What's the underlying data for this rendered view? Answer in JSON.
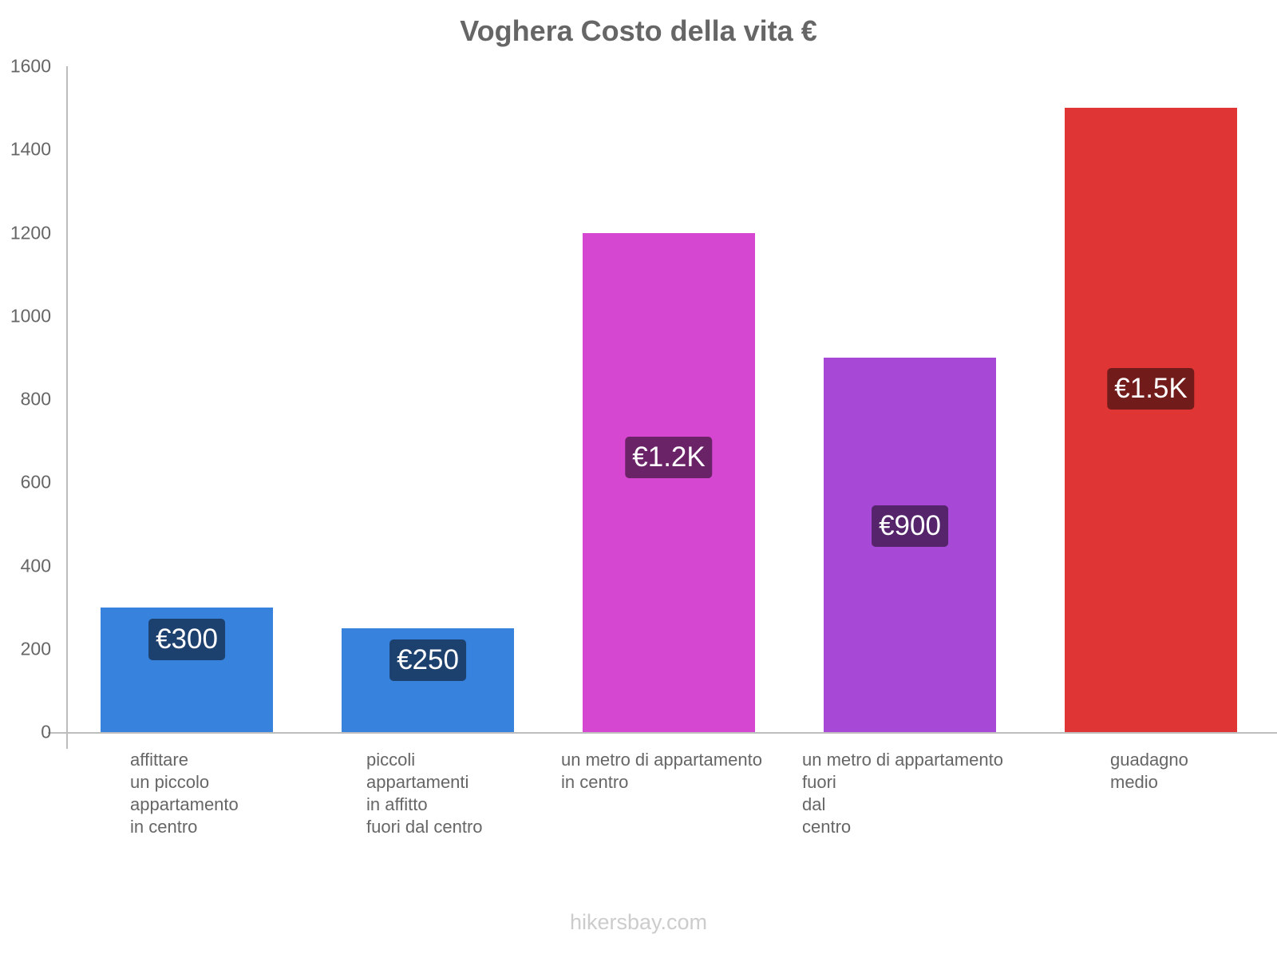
{
  "chart_data": {
    "type": "bar",
    "title": "Voghera Costo della vita €",
    "xlabel": "",
    "ylabel": "",
    "ylim": [
      0,
      1600
    ],
    "yticks": [
      0,
      200,
      400,
      600,
      800,
      1000,
      1200,
      1400,
      1600
    ],
    "grid": false,
    "legend": null,
    "categories": [
      "affittare un piccolo appartamento in centro",
      "piccoli appartamenti in affitto fuori dal centro",
      "un metro di appartamento in centro",
      "un metro di appartamento fuori dal centro",
      "guadagno medio"
    ],
    "category_label_lines": [
      [
        "affittare",
        "un piccolo",
        "appartamento",
        "in centro"
      ],
      [
        "piccoli",
        "appartamenti",
        "in affitto",
        "fuori dal centro"
      ],
      [
        "un metro di appartamento",
        "in centro"
      ],
      [
        "un metro di appartamento",
        "fuori",
        "dal",
        "centro"
      ],
      [
        "guadagno",
        "medio"
      ]
    ],
    "values": [
      300,
      250,
      1200,
      900,
      1500
    ],
    "value_labels": [
      "€300",
      "€250",
      "€1.2K",
      "€900",
      "€1.5K"
    ],
    "bar_colors": [
      "#3682dd",
      "#3682dd",
      "#d647d1",
      "#a848d6",
      "#e03535"
    ],
    "label_bg_colors": [
      "#1d416e",
      "#1d416e",
      "#6b2368",
      "#55246b",
      "#721b1b"
    ]
  },
  "footer": {
    "watermark": "hikersbay.com"
  }
}
